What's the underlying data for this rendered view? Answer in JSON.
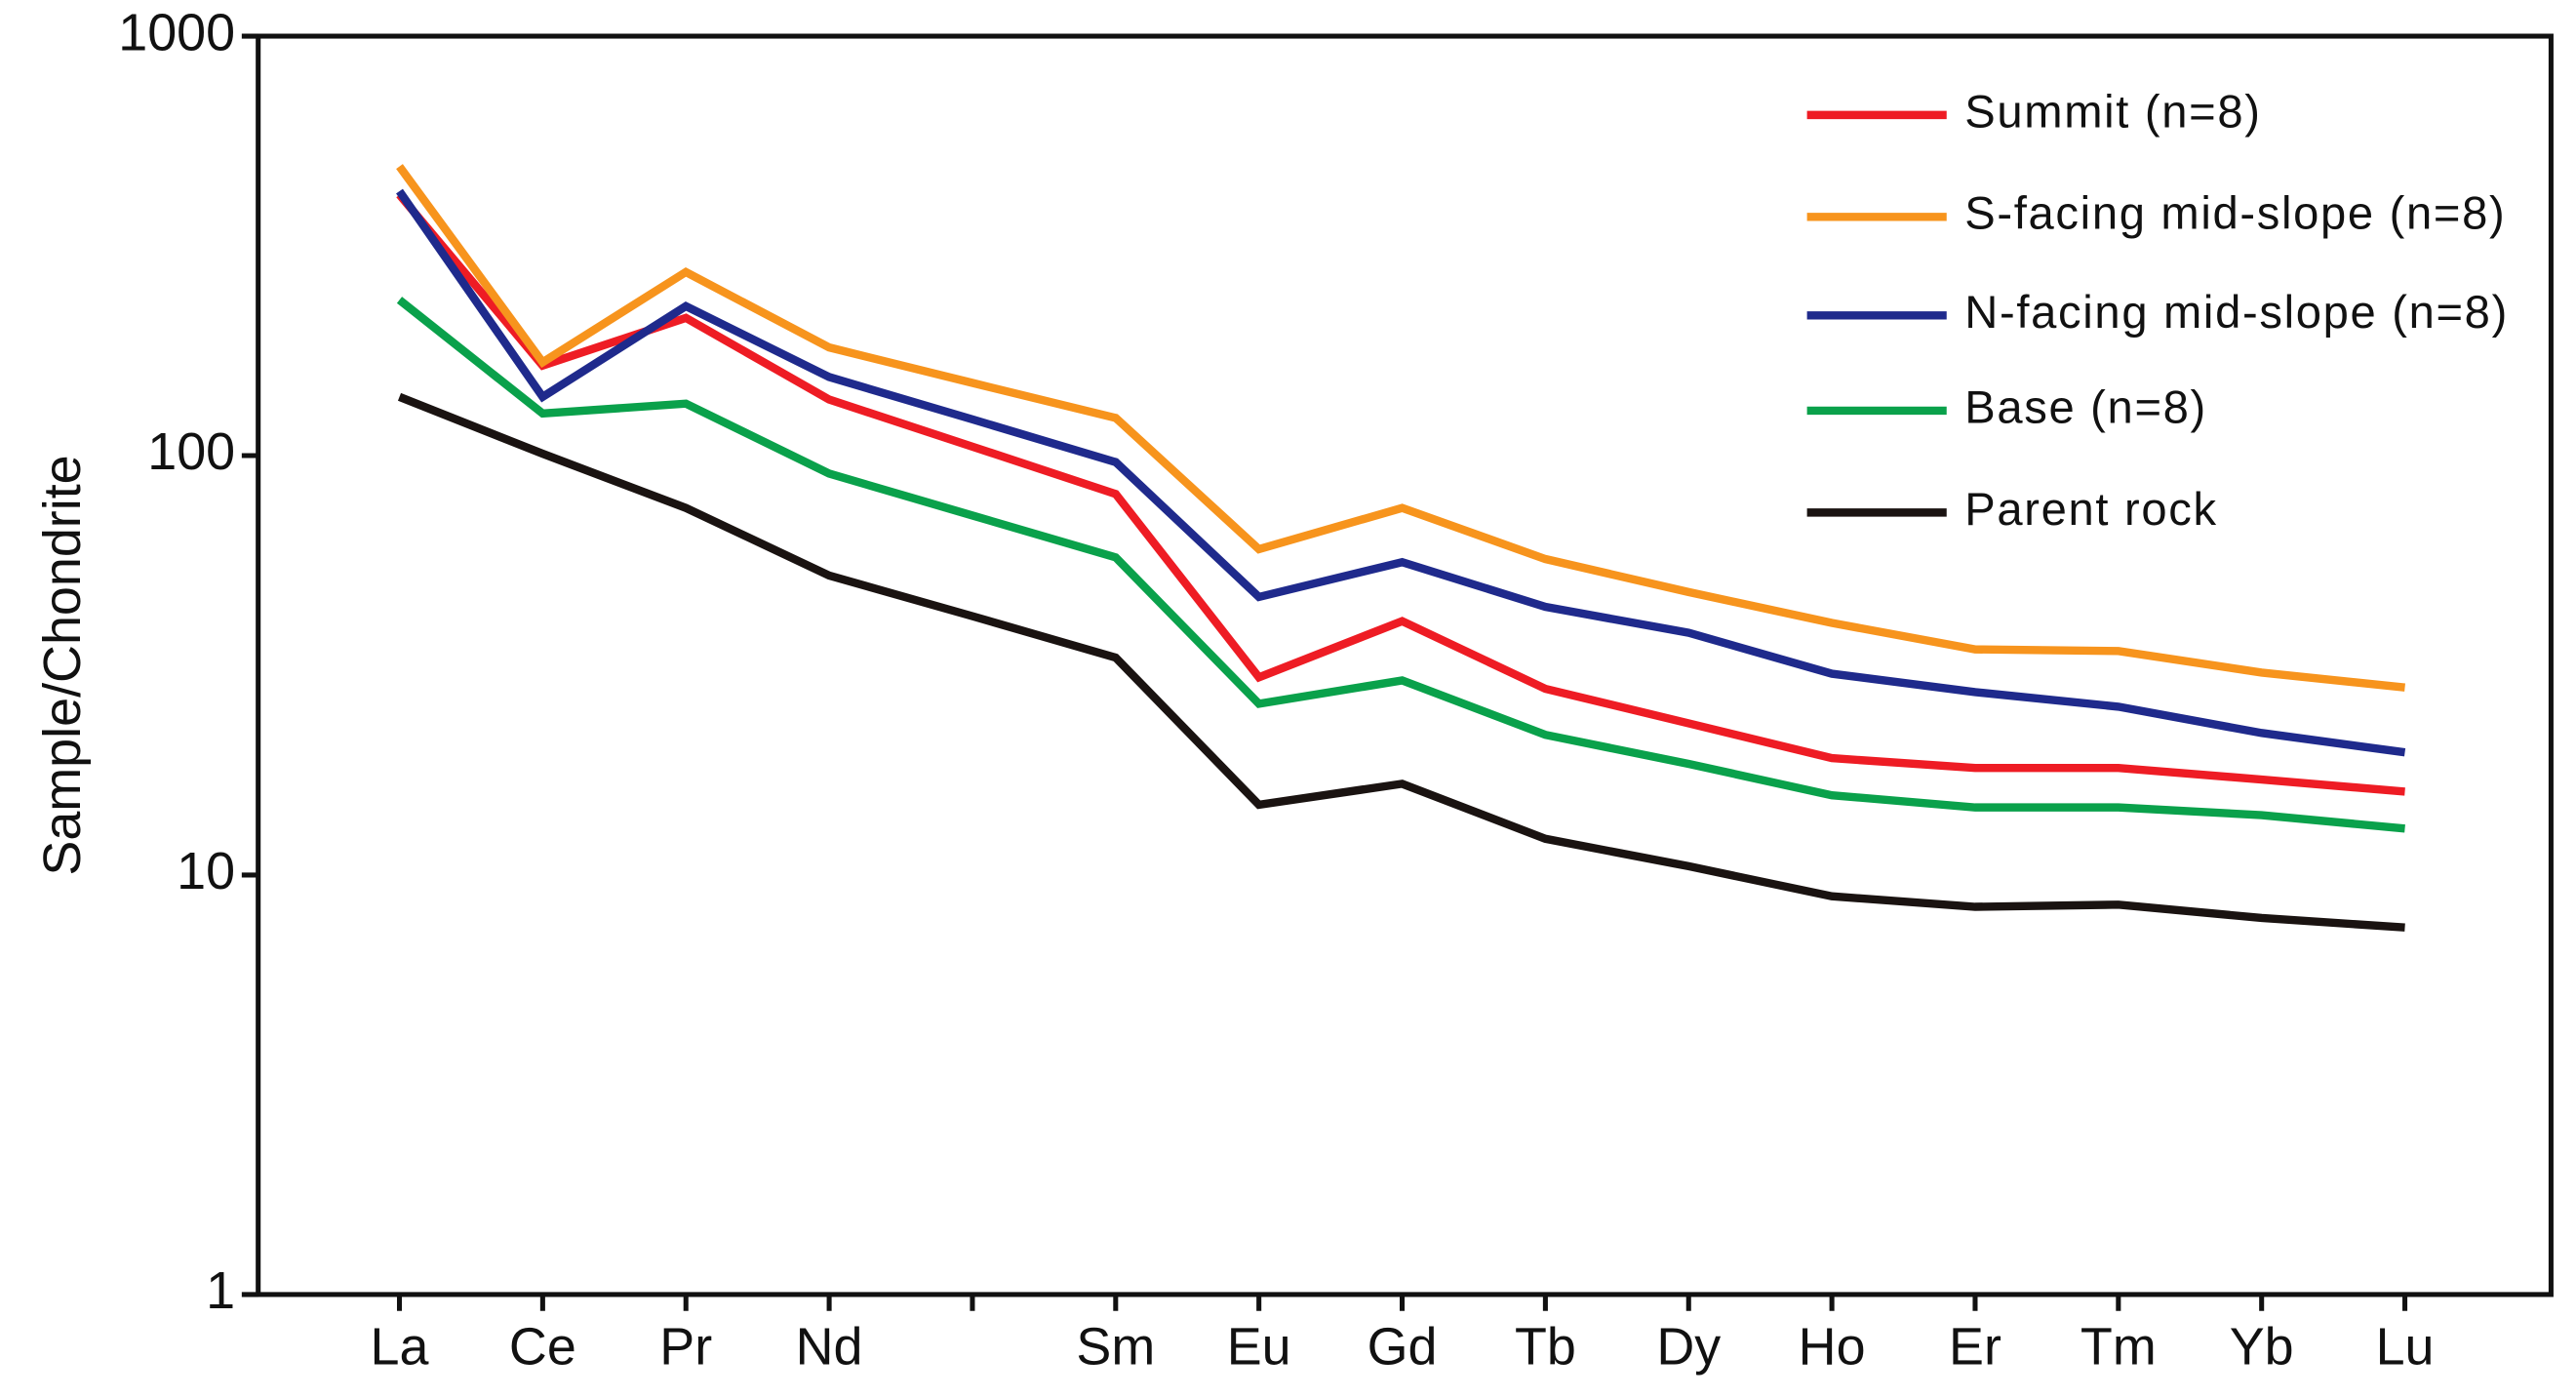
{
  "chart_data": {
    "type": "line",
    "y_label": "Sample/Chondrite",
    "log_scale": true,
    "legend": "upper right",
    "categories": [
      "La",
      "Ce",
      "Pr",
      "Nd",
      null,
      "Sm",
      "Eu",
      "Gd",
      "Tb",
      "Dy",
      "Ho",
      "Er",
      "Tm",
      "Yb",
      "Lu"
    ],
    "ylim": [
      1,
      1000
    ],
    "yticks": [
      1,
      10,
      100,
      1000
    ],
    "series": [
      {
        "name": "Summit (n=8)",
        "color": "#ee1c24",
        "values": [
          419,
          164,
          213,
          136,
          105,
          81,
          29.6,
          40.3,
          27.8,
          23,
          19,
          18,
          18,
          16.9,
          15.8
        ]
      },
      {
        "name": "S-facing mid-slope (n=8)",
        "color": "#f7941d",
        "values": [
          489,
          167,
          274,
          181,
          149,
          123,
          59.8,
          75,
          56.7,
          47.3,
          39.9,
          34.5,
          34.2,
          30.4,
          28
        ]
      },
      {
        "name": "N-facing mid-slope (n=8)",
        "color": "#1f2a8c",
        "values": [
          427,
          138,
          227,
          154,
          122,
          96.5,
          46,
          55.7,
          43.6,
          37.8,
          30.2,
          27.3,
          25.2,
          21.8,
          19.6
        ]
      },
      {
        "name": "Base (n=8)",
        "color": "#0aa14b",
        "values": [
          235,
          126,
          133,
          90.6,
          72,
          57.2,
          25.6,
          29.1,
          21.6,
          18.4,
          15.5,
          14.5,
          14.5,
          13.9,
          12.9
        ]
      },
      {
        "name": "Parent rock",
        "color": "#1a1311",
        "values": [
          138,
          101,
          75,
          51.8,
          41.4,
          33,
          14.7,
          16.5,
          12.2,
          10.5,
          8.9,
          8.4,
          8.5,
          7.9,
          7.5
        ]
      }
    ]
  }
}
